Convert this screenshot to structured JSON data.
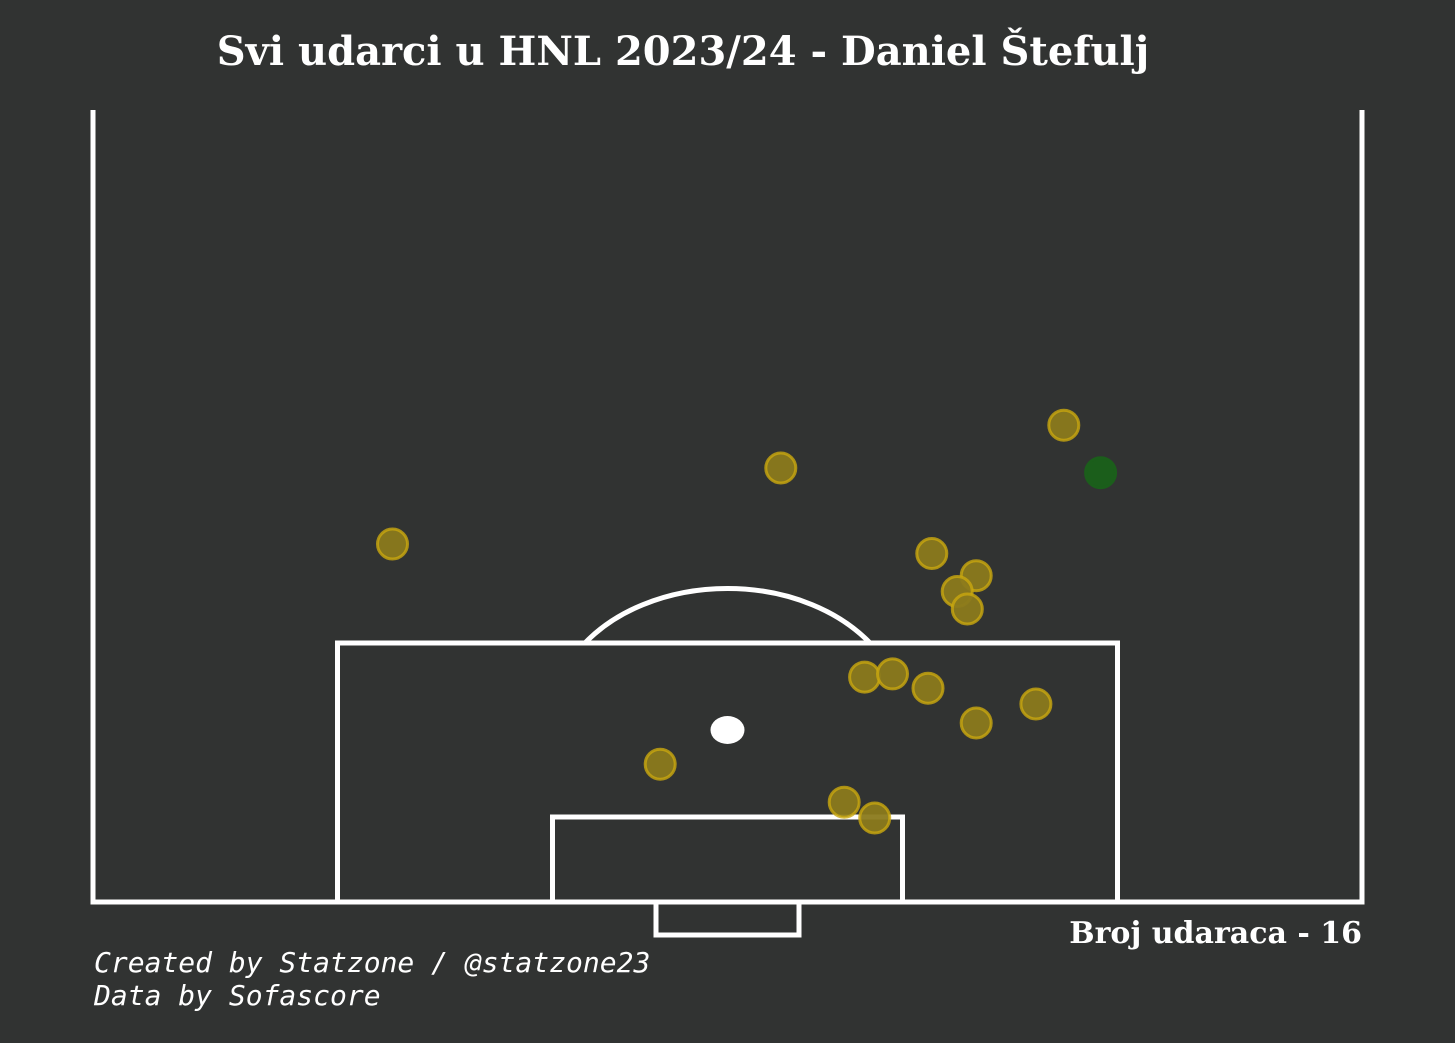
{
  "title": "Svi udarci u HNL 2023/24 - Daniel Štefulj",
  "shot_count_label": "Broj udaraca - 16",
  "credits": {
    "line1": "Created by Statzone / @statzone23",
    "line2": "Data by Sofascore"
  },
  "colors": {
    "background": "#313332",
    "lines": "#ffffff",
    "shot_fill": "#8b7a1c",
    "shot_edge": "#c9a80f",
    "goal_fill": "#1b5e1b"
  },
  "chart_data": {
    "type": "scatter",
    "pitch": "half-pitch, attacking goal at bottom",
    "axes": {
      "x_range": [
        0,
        100
      ],
      "y_range": [
        50,
        100
      ]
    },
    "series": [
      {
        "outcome": "shot",
        "points": [
          {
            "x": 76.5,
            "y": 80.1
          },
          {
            "x": 54.2,
            "y": 77.4
          },
          {
            "x": 23.6,
            "y": 72.6
          },
          {
            "x": 66.1,
            "y": 72.0
          },
          {
            "x": 69.6,
            "y": 70.6
          },
          {
            "x": 68.1,
            "y": 69.6
          },
          {
            "x": 68.9,
            "y": 68.5
          },
          {
            "x": 60.8,
            "y": 64.2
          },
          {
            "x": 63.0,
            "y": 64.4
          },
          {
            "x": 65.8,
            "y": 63.5
          },
          {
            "x": 74.3,
            "y": 62.5
          },
          {
            "x": 69.6,
            "y": 61.3
          },
          {
            "x": 44.7,
            "y": 58.7
          },
          {
            "x": 59.2,
            "y": 56.3
          },
          {
            "x": 61.6,
            "y": 55.3
          }
        ]
      },
      {
        "outcome": "goal",
        "points": [
          {
            "x": 79.4,
            "y": 77.1
          }
        ]
      }
    ]
  }
}
